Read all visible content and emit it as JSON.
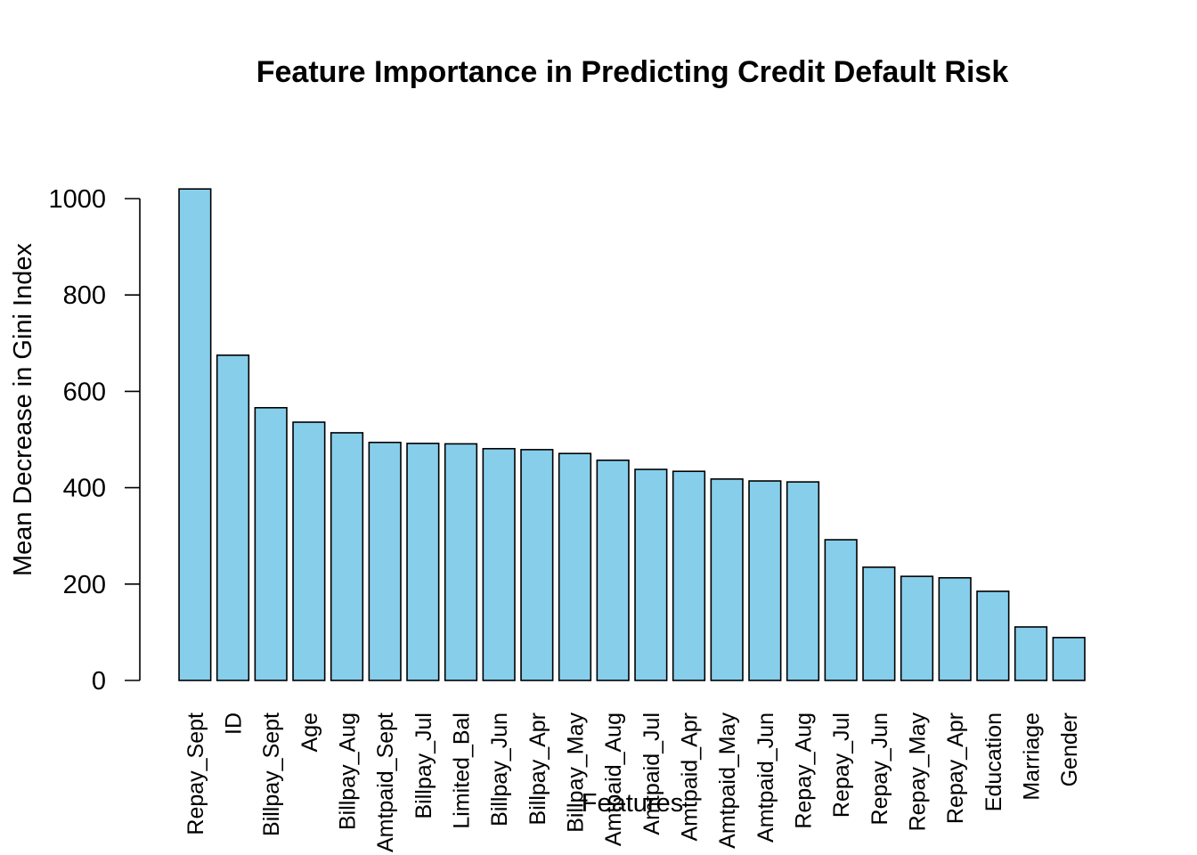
{
  "chart_data": {
    "type": "bar",
    "title": "Feature Importance in Predicting Credit Default Risk",
    "xlabel": "Features",
    "ylabel": "Mean Decrease in Gini Index",
    "ylim": [
      0,
      1000
    ],
    "yticks": [
      "0",
      "200",
      "400",
      "600",
      "800",
      "1000"
    ],
    "grid": false,
    "bar_color": "#87CEEB",
    "categories": [
      "Repay_Sept",
      "ID",
      "Billpay_Sept",
      "Age",
      "Billpay_Aug",
      "Amtpaid_Sept",
      "Billpay_Jul",
      "Limited_Bal",
      "Billpay_Jun",
      "Billpay_Apr",
      "Billpay_May",
      "Amtpaid_Aug",
      "Amtpaid_Jul",
      "Amtpaid_Apr",
      "Amtpaid_May",
      "Amtpaid_Jun",
      "Repay_Aug",
      "Repay_Jul",
      "Repay_Jun",
      "Repay_May",
      "Repay_Apr",
      "Education",
      "Marriage",
      "Gender"
    ],
    "values": [
      1020,
      675,
      566,
      536,
      514,
      494,
      492,
      491,
      481,
      479,
      471,
      457,
      438,
      434,
      418,
      414,
      412,
      292,
      235,
      216,
      213,
      185,
      111,
      89
    ]
  }
}
